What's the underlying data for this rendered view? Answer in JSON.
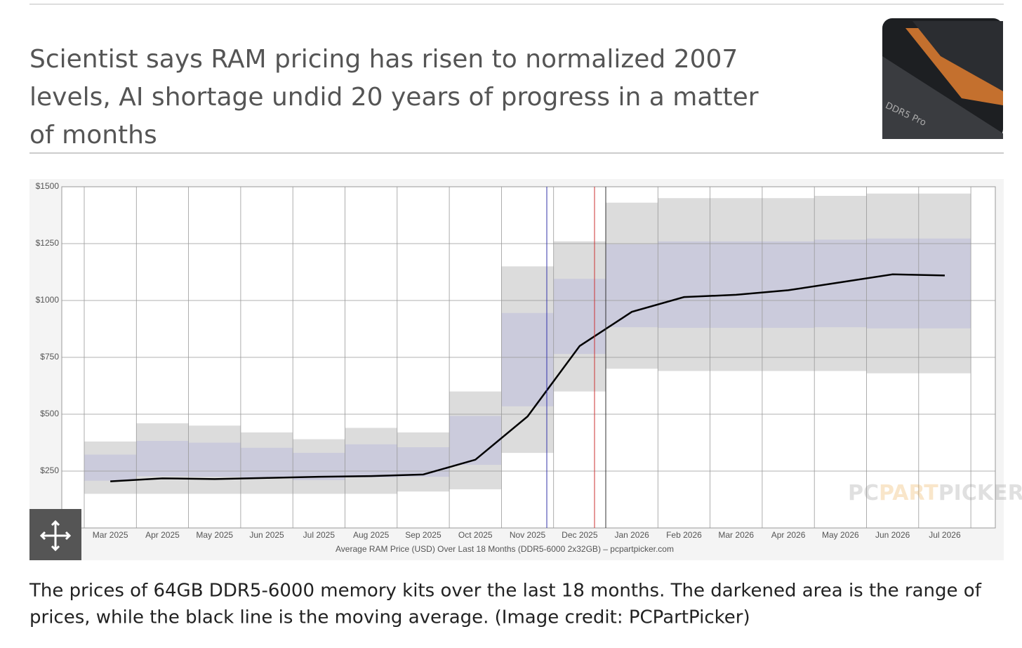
{
  "header": {
    "title": "Scientist says RAM pricing has risen to normalized 2007 levels, AI shortage undid 20 years of progress in a matter of months"
  },
  "caption": "The prices of 64GB DDR5-6000 memory kits over the last 18 months. The darkened area is the range of prices, while the black line is the moving average. (Image credit: PCPartPicker)",
  "chart_data": {
    "type": "line",
    "x_label": "Average RAM Price (USD) Over Last 18 Months (DDR5-6000 2x32GB) – pcpartpicker.com",
    "watermark": [
      "PC",
      "PART",
      "PICKER"
    ],
    "categories": [
      "Mar 2025",
      "Apr 2025",
      "May 2025",
      "Jun 2025",
      "Jul 2025",
      "Aug 2025",
      "Sep 2025",
      "Oct 2025",
      "Nov 2025",
      "Dec 2025",
      "Jan 2026",
      "Feb 2026",
      "Mar 2026",
      "Apr 2026",
      "May 2026",
      "Jun 2026",
      "Jul 2026"
    ],
    "values": [
      205,
      218,
      215,
      220,
      225,
      228,
      235,
      300,
      490,
      800,
      950,
      1015,
      1025,
      1045,
      1080,
      1115,
      1110
    ],
    "range_low": [
      150,
      150,
      150,
      150,
      150,
      150,
      160,
      170,
      330,
      600,
      700,
      690,
      690,
      690,
      690,
      680,
      680
    ],
    "range_high": [
      380,
      460,
      450,
      420,
      390,
      440,
      420,
      600,
      1150,
      1260,
      1430,
      1450,
      1450,
      1450,
      1460,
      1470,
      1470
    ],
    "color": "#000000",
    "range_color": "#dcdcdc",
    "ylim": [
      0,
      1500
    ],
    "yticks": [
      {
        "value": 250,
        "label": "$250"
      },
      {
        "value": 500,
        "label": "$500"
      },
      {
        "value": 750,
        "label": "$750"
      },
      {
        "value": 1000,
        "label": "$1000"
      },
      {
        "value": 1250,
        "label": "$1250"
      },
      {
        "value": 1500,
        "label": "$1500"
      }
    ],
    "grid": true
  }
}
